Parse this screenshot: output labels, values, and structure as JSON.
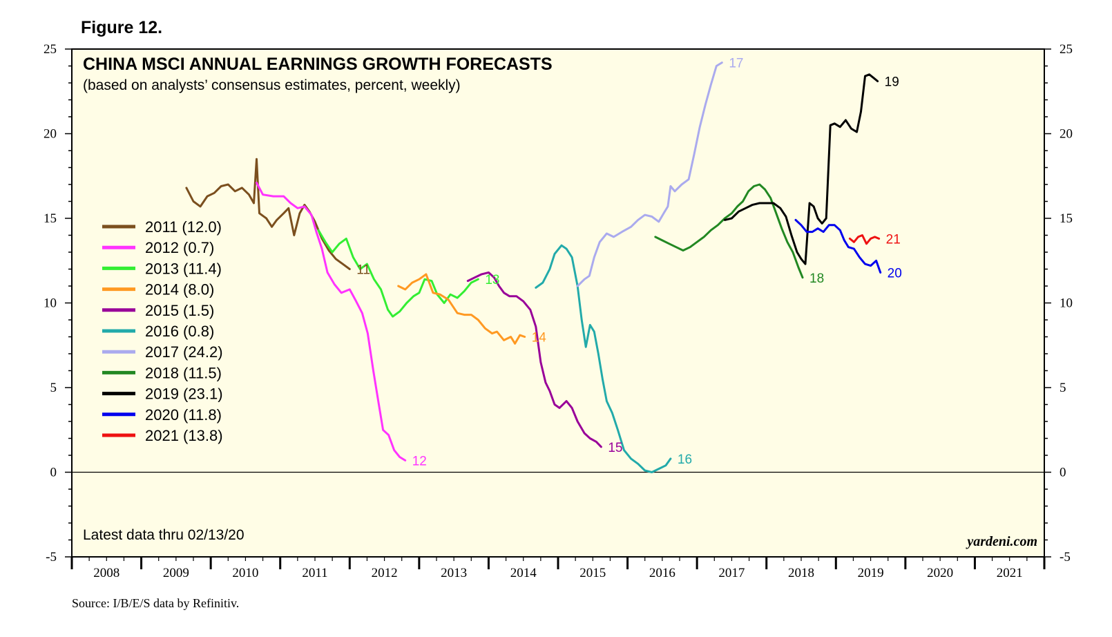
{
  "figure_label": "Figure 12.",
  "source": "Source: I/B/E/S data by Refinitiv.",
  "chart_data": {
    "type": "line",
    "title": "CHINA MSCI ANNUAL EARNINGS GROWTH FORECASTS",
    "subtitle": "(based on analysts’ consensus estimates, percent, weekly)",
    "note": "Latest data thru 02/13/20",
    "credit": "yardeni.com",
    "xlabel": "",
    "ylabel": "",
    "ylim": [
      -5,
      25
    ],
    "yticks": [
      -5,
      0,
      5,
      10,
      15,
      20,
      25
    ],
    "ytick_labels": [
      "-5",
      "0",
      "5",
      "10",
      "15",
      "20",
      "25"
    ],
    "xlim": [
      2008,
      2022
    ],
    "xtick_labels": [
      "2008",
      "2009",
      "2010",
      "2011",
      "2012",
      "2013",
      "2014",
      "2015",
      "2016",
      "2017",
      "2018",
      "2019",
      "2020",
      "2021"
    ],
    "zero_line": true,
    "background": "#fffde6",
    "series": [
      {
        "name": "2011",
        "legend": "2011 (12.0)",
        "end_label": "11",
        "color": "#7b4f1e",
        "points": [
          [
            2009.65,
            16.8
          ],
          [
            2009.75,
            16.0
          ],
          [
            2009.85,
            15.7
          ],
          [
            2009.95,
            16.3
          ],
          [
            2010.05,
            16.5
          ],
          [
            2010.15,
            16.9
          ],
          [
            2010.25,
            17.0
          ],
          [
            2010.35,
            16.6
          ],
          [
            2010.45,
            16.8
          ],
          [
            2010.55,
            16.4
          ],
          [
            2010.62,
            15.9
          ],
          [
            2010.66,
            18.5
          ],
          [
            2010.7,
            15.3
          ],
          [
            2010.8,
            15.0
          ],
          [
            2010.88,
            14.5
          ],
          [
            2010.95,
            14.9
          ],
          [
            2011.05,
            15.3
          ],
          [
            2011.12,
            15.6
          ],
          [
            2011.2,
            14.0
          ],
          [
            2011.28,
            15.3
          ],
          [
            2011.35,
            15.8
          ],
          [
            2011.42,
            15.4
          ],
          [
            2011.5,
            14.8
          ],
          [
            2011.6,
            13.8
          ],
          [
            2011.7,
            13.1
          ],
          [
            2011.8,
            12.6
          ],
          [
            2011.9,
            12.3
          ],
          [
            2012.0,
            12.0
          ]
        ]
      },
      {
        "name": "2012",
        "legend": "2012 (0.7)",
        "end_label": "12",
        "color": "#ff33ff",
        "points": [
          [
            2010.66,
            17.1
          ],
          [
            2010.75,
            16.4
          ],
          [
            2010.9,
            16.3
          ],
          [
            2011.05,
            16.3
          ],
          [
            2011.15,
            15.9
          ],
          [
            2011.25,
            15.6
          ],
          [
            2011.35,
            15.7
          ],
          [
            2011.45,
            15.2
          ],
          [
            2011.52,
            14.2
          ],
          [
            2011.6,
            13.2
          ],
          [
            2011.68,
            11.8
          ],
          [
            2011.78,
            11.1
          ],
          [
            2011.88,
            10.6
          ],
          [
            2012.0,
            10.8
          ],
          [
            2012.08,
            10.2
          ],
          [
            2012.18,
            9.4
          ],
          [
            2012.26,
            8.2
          ],
          [
            2012.34,
            6.0
          ],
          [
            2012.42,
            4.0
          ],
          [
            2012.48,
            2.5
          ],
          [
            2012.56,
            2.2
          ],
          [
            2012.64,
            1.3
          ],
          [
            2012.72,
            0.9
          ],
          [
            2012.8,
            0.7
          ]
        ]
      },
      {
        "name": "2013",
        "legend": "2013 (11.4)",
        "end_label": "13",
        "color": "#33ee33",
        "points": [
          [
            2011.55,
            14.3
          ],
          [
            2011.65,
            13.6
          ],
          [
            2011.75,
            13.0
          ],
          [
            2011.85,
            13.5
          ],
          [
            2011.95,
            13.8
          ],
          [
            2012.05,
            12.7
          ],
          [
            2012.15,
            12.0
          ],
          [
            2012.25,
            12.3
          ],
          [
            2012.35,
            11.4
          ],
          [
            2012.45,
            10.8
          ],
          [
            2012.55,
            9.6
          ],
          [
            2012.62,
            9.2
          ],
          [
            2012.72,
            9.5
          ],
          [
            2012.82,
            10.0
          ],
          [
            2012.92,
            10.4
          ],
          [
            2013.0,
            10.6
          ],
          [
            2013.08,
            11.4
          ],
          [
            2013.18,
            11.3
          ],
          [
            2013.26,
            10.5
          ],
          [
            2013.36,
            10.0
          ],
          [
            2013.45,
            10.5
          ],
          [
            2013.55,
            10.3
          ],
          [
            2013.65,
            10.7
          ],
          [
            2013.75,
            11.2
          ],
          [
            2013.85,
            11.4
          ]
        ]
      },
      {
        "name": "2014",
        "legend": "2014 (8.0)",
        "end_label": "14",
        "color": "#ff9922",
        "points": [
          [
            2012.7,
            11.0
          ],
          [
            2012.8,
            10.8
          ],
          [
            2012.9,
            11.2
          ],
          [
            2013.0,
            11.4
          ],
          [
            2013.1,
            11.7
          ],
          [
            2013.2,
            10.6
          ],
          [
            2013.3,
            10.5
          ],
          [
            2013.42,
            10.2
          ],
          [
            2013.55,
            9.4
          ],
          [
            2013.65,
            9.3
          ],
          [
            2013.75,
            9.3
          ],
          [
            2013.85,
            9.0
          ],
          [
            2013.95,
            8.5
          ],
          [
            2014.05,
            8.2
          ],
          [
            2014.12,
            8.3
          ],
          [
            2014.22,
            7.8
          ],
          [
            2014.32,
            8.0
          ],
          [
            2014.38,
            7.6
          ],
          [
            2014.45,
            8.1
          ],
          [
            2014.52,
            8.0
          ]
        ]
      },
      {
        "name": "2015",
        "legend": "2015 (1.5)",
        "end_label": "15",
        "color": "#990099",
        "points": [
          [
            2013.7,
            11.3
          ],
          [
            2013.8,
            11.5
          ],
          [
            2013.9,
            11.7
          ],
          [
            2014.0,
            11.8
          ],
          [
            2014.08,
            11.5
          ],
          [
            2014.15,
            11.0
          ],
          [
            2014.22,
            10.6
          ],
          [
            2014.3,
            10.4
          ],
          [
            2014.4,
            10.4
          ],
          [
            2014.5,
            10.1
          ],
          [
            2014.6,
            9.6
          ],
          [
            2014.68,
            8.6
          ],
          [
            2014.75,
            6.5
          ],
          [
            2014.82,
            5.3
          ],
          [
            2014.88,
            4.8
          ],
          [
            2014.95,
            4.0
          ],
          [
            2015.02,
            3.8
          ],
          [
            2015.12,
            4.2
          ],
          [
            2015.2,
            3.8
          ],
          [
            2015.28,
            3.0
          ],
          [
            2015.38,
            2.3
          ],
          [
            2015.46,
            2.0
          ],
          [
            2015.55,
            1.8
          ],
          [
            2015.62,
            1.5
          ]
        ]
      },
      {
        "name": "2016",
        "legend": "2016 (0.8)",
        "end_label": "16",
        "color": "#22aaaa",
        "points": [
          [
            2014.68,
            10.9
          ],
          [
            2014.78,
            11.2
          ],
          [
            2014.88,
            12.0
          ],
          [
            2014.95,
            12.9
          ],
          [
            2015.05,
            13.4
          ],
          [
            2015.12,
            13.2
          ],
          [
            2015.2,
            12.7
          ],
          [
            2015.28,
            11.0
          ],
          [
            2015.34,
            9.0
          ],
          [
            2015.4,
            7.4
          ],
          [
            2015.46,
            8.7
          ],
          [
            2015.52,
            8.3
          ],
          [
            2015.58,
            7.0
          ],
          [
            2015.64,
            5.5
          ],
          [
            2015.7,
            4.2
          ],
          [
            2015.78,
            3.5
          ],
          [
            2015.86,
            2.5
          ],
          [
            2015.95,
            1.3
          ],
          [
            2016.05,
            0.8
          ],
          [
            2016.15,
            0.5
          ],
          [
            2016.25,
            0.1
          ],
          [
            2016.35,
            0.0
          ],
          [
            2016.45,
            0.2
          ],
          [
            2016.55,
            0.4
          ],
          [
            2016.62,
            0.8
          ]
        ]
      },
      {
        "name": "2017",
        "legend": "2017 (24.2)",
        "end_label": "17",
        "color": "#aaaaee",
        "points": [
          [
            2015.28,
            11.0
          ],
          [
            2015.38,
            11.4
          ],
          [
            2015.45,
            11.6
          ],
          [
            2015.52,
            12.7
          ],
          [
            2015.6,
            13.6
          ],
          [
            2015.7,
            14.1
          ],
          [
            2015.8,
            13.9
          ],
          [
            2015.92,
            14.2
          ],
          [
            2016.05,
            14.5
          ],
          [
            2016.15,
            14.9
          ],
          [
            2016.25,
            15.2
          ],
          [
            2016.35,
            15.1
          ],
          [
            2016.45,
            14.8
          ],
          [
            2016.52,
            15.3
          ],
          [
            2016.58,
            15.7
          ],
          [
            2016.62,
            16.9
          ],
          [
            2016.68,
            16.6
          ],
          [
            2016.78,
            17.0
          ],
          [
            2016.88,
            17.3
          ],
          [
            2016.96,
            18.8
          ],
          [
            2017.04,
            20.4
          ],
          [
            2017.12,
            21.7
          ],
          [
            2017.2,
            22.9
          ],
          [
            2017.28,
            24.0
          ],
          [
            2017.36,
            24.2
          ]
        ]
      },
      {
        "name": "2018",
        "legend": "2018 (11.5)",
        "end_label": "18",
        "color": "#228822",
        "points": [
          [
            2016.4,
            13.9
          ],
          [
            2016.5,
            13.7
          ],
          [
            2016.6,
            13.5
          ],
          [
            2016.7,
            13.3
          ],
          [
            2016.8,
            13.1
          ],
          [
            2016.9,
            13.3
          ],
          [
            2017.0,
            13.6
          ],
          [
            2017.1,
            13.9
          ],
          [
            2017.2,
            14.3
          ],
          [
            2017.3,
            14.6
          ],
          [
            2017.4,
            15.0
          ],
          [
            2017.5,
            15.3
          ],
          [
            2017.58,
            15.7
          ],
          [
            2017.66,
            16.0
          ],
          [
            2017.74,
            16.6
          ],
          [
            2017.82,
            16.9
          ],
          [
            2017.9,
            17.0
          ],
          [
            2017.98,
            16.7
          ],
          [
            2018.06,
            16.2
          ],
          [
            2018.14,
            15.3
          ],
          [
            2018.22,
            14.4
          ],
          [
            2018.3,
            13.6
          ],
          [
            2018.38,
            13.0
          ],
          [
            2018.46,
            12.1
          ],
          [
            2018.52,
            11.5
          ]
        ]
      },
      {
        "name": "2019",
        "legend": "2019 (23.1)",
        "end_label": "19",
        "color": "#000000",
        "points": [
          [
            2017.4,
            14.9
          ],
          [
            2017.5,
            15.0
          ],
          [
            2017.6,
            15.4
          ],
          [
            2017.7,
            15.6
          ],
          [
            2017.8,
            15.8
          ],
          [
            2017.9,
            15.9
          ],
          [
            2018.0,
            15.9
          ],
          [
            2018.1,
            15.9
          ],
          [
            2018.2,
            15.6
          ],
          [
            2018.28,
            15.1
          ],
          [
            2018.36,
            14.0
          ],
          [
            2018.44,
            13.0
          ],
          [
            2018.5,
            12.6
          ],
          [
            2018.56,
            12.3
          ],
          [
            2018.62,
            15.9
          ],
          [
            2018.68,
            15.7
          ],
          [
            2018.74,
            15.0
          ],
          [
            2018.8,
            14.7
          ],
          [
            2018.86,
            15.0
          ],
          [
            2018.92,
            20.5
          ],
          [
            2018.98,
            20.6
          ],
          [
            2019.06,
            20.4
          ],
          [
            2019.14,
            20.8
          ],
          [
            2019.22,
            20.3
          ],
          [
            2019.3,
            20.1
          ],
          [
            2019.36,
            21.3
          ],
          [
            2019.42,
            23.4
          ],
          [
            2019.48,
            23.5
          ],
          [
            2019.54,
            23.3
          ],
          [
            2019.6,
            23.1
          ]
        ]
      },
      {
        "name": "2020",
        "legend": "2020 (11.8)",
        "end_label": "20",
        "color": "#0000ee",
        "points": [
          [
            2018.42,
            14.9
          ],
          [
            2018.5,
            14.6
          ],
          [
            2018.58,
            14.2
          ],
          [
            2018.66,
            14.2
          ],
          [
            2018.74,
            14.4
          ],
          [
            2018.82,
            14.2
          ],
          [
            2018.9,
            14.6
          ],
          [
            2018.98,
            14.6
          ],
          [
            2019.06,
            14.3
          ],
          [
            2019.12,
            13.7
          ],
          [
            2019.18,
            13.3
          ],
          [
            2019.26,
            13.2
          ],
          [
            2019.34,
            12.7
          ],
          [
            2019.42,
            12.3
          ],
          [
            2019.5,
            12.2
          ],
          [
            2019.58,
            12.5
          ],
          [
            2019.64,
            11.8
          ]
        ]
      },
      {
        "name": "2021",
        "legend": "2021 (13.8)",
        "end_label": "21",
        "color": "#ee1111",
        "points": [
          [
            2019.2,
            13.8
          ],
          [
            2019.26,
            13.6
          ],
          [
            2019.32,
            13.9
          ],
          [
            2019.38,
            14.0
          ],
          [
            2019.44,
            13.5
          ],
          [
            2019.5,
            13.8
          ],
          [
            2019.56,
            13.9
          ],
          [
            2019.62,
            13.8
          ]
        ]
      }
    ]
  }
}
